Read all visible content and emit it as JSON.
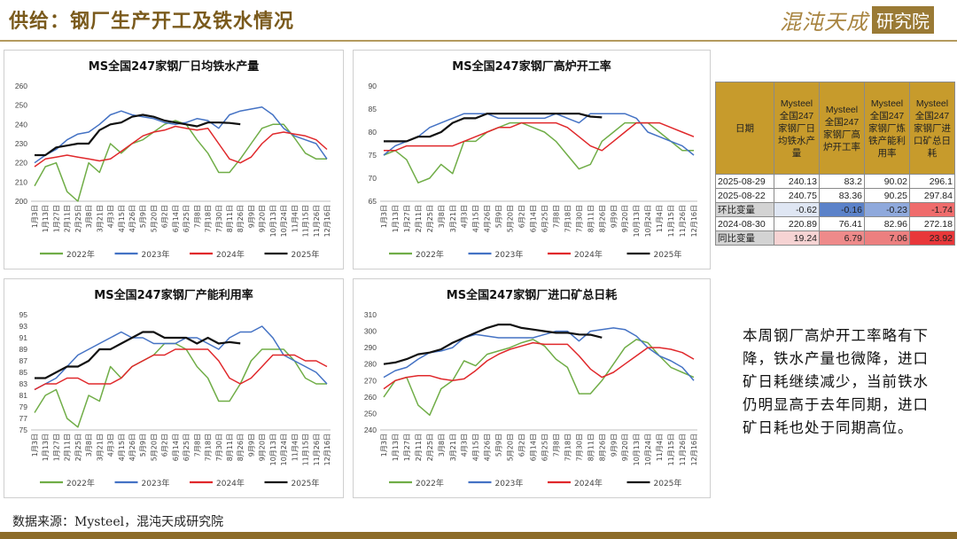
{
  "header": {
    "title": "供给：钢厂生产开工及铁水情况",
    "brand_main": "混沌天成",
    "brand_box": "研究院"
  },
  "footer": {
    "source": "数据来源：Mysteel，混沌天成研究院"
  },
  "commentary": "本周钢厂高炉开工率略有下降，铁水产量也微降，进口矿日耗继续减少，当前铁水仍明显高于去年同期，进口矿日耗也处于同期高位。",
  "colors": {
    "s2022": "#70ad47",
    "s2023": "#4472c4",
    "s2024": "#e0282b",
    "s2025": "#111111",
    "table_header": "#c79b2c",
    "accent": "#8c6b28"
  },
  "table": {
    "headers": [
      "日期",
      "Mysteel全国247家钢厂日均铁水产量",
      "Mysteel全国247家钢厂高炉开工率",
      "Mysteel全国247家钢厂炼铁产能利用率",
      "Mysteel全国247家钢厂进口矿总日耗"
    ],
    "rows": [
      {
        "label": "2025-08-29",
        "values": [
          "240.13",
          "83.2",
          "90.02",
          "296.1"
        ],
        "highlight": false,
        "colors": []
      },
      {
        "label": "2025-08-22",
        "values": [
          "240.75",
          "83.36",
          "90.25",
          "297.84"
        ],
        "highlight": false,
        "colors": []
      },
      {
        "label": "环比变量",
        "values": [
          "-0.62",
          "-0.16",
          "-0.23",
          "-1.74"
        ],
        "highlight": true,
        "colors": [
          "#dfe6f3",
          "#5b82c9",
          "#8fa9dc",
          "#ef6c6c"
        ]
      },
      {
        "label": "2024-08-30",
        "values": [
          "220.89",
          "76.41",
          "82.96",
          "272.18"
        ],
        "highlight": false,
        "colors": []
      },
      {
        "label": "同比变量",
        "values": [
          "19.24",
          "6.79",
          "7.06",
          "23.92"
        ],
        "highlight": true,
        "colors": [
          "#f6d3d3",
          "#ee8a8a",
          "#ec7f7f",
          "#e8373a"
        ]
      }
    ]
  },
  "chart_data": [
    {
      "type": "line",
      "title": "MS全国247家钢厂日均铁水产量",
      "ylim": [
        200,
        260
      ],
      "yticks": [
        200,
        210,
        220,
        230,
        240,
        250,
        260
      ],
      "x": [
        "1月3日",
        "1月13日",
        "1月27日",
        "2月11日",
        "2月25日",
        "3月8日",
        "3月21日",
        "4月3日",
        "4月15日",
        "4月26日",
        "5月9日",
        "5月20日",
        "6月2日",
        "6月14日",
        "6月25日",
        "7月8日",
        "7月18日",
        "7月30日",
        "8月11日",
        "8月26日",
        "9月9日",
        "9月20日",
        "10月13日",
        "10月24日",
        "11月4日",
        "11月15日",
        "11月26日",
        "12月16日"
      ],
      "series": [
        {
          "name": "2022年",
          "key": "s2022",
          "values": [
            208,
            218,
            220,
            205,
            200,
            220,
            215,
            230,
            225,
            230,
            232,
            236,
            240,
            242,
            240,
            232,
            225,
            215,
            215,
            222,
            230,
            238,
            240,
            240,
            233,
            225,
            222,
            222
          ]
        },
        {
          "name": "2023年",
          "key": "s2023",
          "values": [
            220,
            224,
            227,
            232,
            235,
            236,
            240,
            245,
            247,
            245,
            244,
            243,
            241,
            240,
            241,
            243,
            242,
            238,
            245,
            247,
            248,
            249,
            245,
            238,
            234,
            232,
            230,
            222
          ]
        },
        {
          "name": "2024年",
          "key": "s2024",
          "values": [
            218,
            222,
            223,
            224,
            223,
            222,
            221,
            222,
            226,
            230,
            234,
            236,
            237,
            239,
            238,
            237,
            238,
            230,
            222,
            220,
            223,
            230,
            235,
            236,
            235,
            234,
            232,
            227
          ]
        },
        {
          "name": "2025年",
          "key": "s2025",
          "values": [
            224,
            224,
            228,
            229,
            230,
            230,
            237,
            240,
            241,
            244,
            245,
            244,
            242,
            241,
            240,
            239,
            241,
            241,
            240.75,
            240.13,
            null,
            null,
            null,
            null,
            null,
            null,
            null,
            null
          ]
        }
      ]
    },
    {
      "type": "line",
      "title": "MS全国247家钢厂高炉开工率",
      "ylim": [
        65,
        90
      ],
      "yticks": [
        65,
        70,
        75,
        80,
        85,
        90
      ],
      "x": [
        "1月3日",
        "1月13日",
        "1月27日",
        "2月11日",
        "2月25日",
        "3月8日",
        "3月21日",
        "4月3日",
        "4月15日",
        "4月26日",
        "5月9日",
        "5月20日",
        "6月2日",
        "6月14日",
        "6月25日",
        "7月8日",
        "7月18日",
        "7月30日",
        "8月11日",
        "8月26日",
        "9月9日",
        "9月20日",
        "10月13日",
        "10月24日",
        "11月4日",
        "11月15日",
        "11月26日",
        "12月16日"
      ],
      "series": [
        {
          "name": "2022年",
          "key": "s2022",
          "values": [
            75,
            76,
            74,
            69,
            70,
            73,
            71,
            78,
            78,
            80,
            81,
            82,
            82,
            81,
            80,
            78,
            75,
            72,
            73,
            78,
            80,
            82,
            82,
            82,
            80,
            78,
            76,
            76
          ]
        },
        {
          "name": "2023年",
          "key": "s2023",
          "values": [
            75,
            77,
            78,
            79,
            81,
            82,
            83,
            84,
            84,
            84,
            83,
            83,
            83,
            83,
            83,
            84,
            83,
            82,
            84,
            84,
            84,
            84,
            83,
            80,
            79,
            78,
            77,
            75
          ]
        },
        {
          "name": "2024年",
          "key": "s2024",
          "values": [
            76,
            76,
            77,
            77,
            77,
            77,
            77,
            78,
            79,
            80,
            81,
            81,
            82,
            82,
            82,
            82,
            81,
            79,
            77,
            76,
            78,
            80,
            82,
            82,
            82,
            81,
            80,
            79
          ]
        },
        {
          "name": "2025年",
          "key": "s2025",
          "values": [
            78,
            78,
            78,
            79,
            79,
            80,
            82,
            83,
            83,
            84,
            84,
            84,
            84,
            84,
            84,
            84,
            84,
            84,
            83.36,
            83.2,
            null,
            null,
            null,
            null,
            null,
            null,
            null,
            null
          ]
        }
      ]
    },
    {
      "type": "line",
      "title": "MS全国247家钢厂产能利用率",
      "ylim": [
        75,
        95
      ],
      "yticks": [
        75,
        77,
        79,
        81,
        83,
        85,
        87,
        89,
        91,
        93,
        95
      ],
      "x": [
        "1月3日",
        "1月13日",
        "1月27日",
        "2月11日",
        "2月25日",
        "3月8日",
        "3月21日",
        "4月3日",
        "4月15日",
        "4月26日",
        "5月9日",
        "5月20日",
        "6月2日",
        "6月14日",
        "6月25日",
        "7月8日",
        "7月18日",
        "7月30日",
        "8月11日",
        "8月26日",
        "9月9日",
        "9月20日",
        "10月13日",
        "10月24日",
        "11月4日",
        "11月15日",
        "11月26日",
        "12月16日"
      ],
      "series": [
        {
          "name": "2022年",
          "key": "s2022",
          "values": [
            78,
            81,
            82,
            77,
            75.5,
            81,
            80,
            86,
            84,
            86,
            87,
            88,
            90,
            90,
            89,
            86,
            84,
            80,
            80,
            83,
            87,
            89,
            89,
            89,
            87,
            84,
            83,
            83
          ]
        },
        {
          "name": "2023年",
          "key": "s2023",
          "values": [
            82,
            83,
            84,
            86,
            88,
            89,
            90,
            91,
            92,
            91,
            91,
            90,
            90,
            90,
            91,
            91,
            90,
            89,
            91,
            92,
            92,
            93,
            91,
            88,
            87,
            86,
            85,
            83
          ]
        },
        {
          "name": "2024年",
          "key": "s2024",
          "values": [
            82,
            83,
            83,
            84,
            84,
            83,
            83,
            83,
            84,
            86,
            87,
            88,
            88,
            89,
            89,
            89,
            89,
            87,
            84,
            83,
            84,
            86,
            88,
            88,
            88,
            87,
            87,
            86
          ]
        },
        {
          "name": "2025年",
          "key": "s2025",
          "values": [
            84,
            84,
            85,
            86,
            86,
            87,
            89,
            89,
            90,
            91,
            92,
            92,
            91,
            91,
            91,
            90,
            91,
            90,
            90.25,
            90.02,
            null,
            null,
            null,
            null,
            null,
            null,
            null,
            null
          ]
        }
      ]
    },
    {
      "type": "line",
      "title": "MS全国247家钢厂进口矿总日耗",
      "ylim": [
        240,
        310
      ],
      "yticks": [
        240,
        250,
        260,
        270,
        280,
        290,
        300,
        310
      ],
      "x": [
        "1月3日",
        "1月13日",
        "1月27日",
        "2月11日",
        "2月25日",
        "3月8日",
        "3月21日",
        "4月3日",
        "4月15日",
        "4月26日",
        "5月9日",
        "5月20日",
        "6月2日",
        "6月14日",
        "6月25日",
        "7月8日",
        "7月18日",
        "7月30日",
        "8月11日",
        "8月26日",
        "9月9日",
        "9月20日",
        "10月13日",
        "10月24日",
        "11月4日",
        "11月15日",
        "11月26日",
        "12月16日"
      ],
      "series": [
        {
          "name": "2022年",
          "key": "s2022",
          "values": [
            260,
            270,
            272,
            255,
            249,
            265,
            270,
            282,
            279,
            286,
            288,
            290,
            293,
            295,
            291,
            283,
            278,
            262,
            262,
            270,
            280,
            290,
            295,
            293,
            285,
            278,
            275,
            272
          ]
        },
        {
          "name": "2023年",
          "key": "s2023",
          "values": [
            272,
            276,
            278,
            283,
            287,
            288,
            290,
            296,
            298,
            297,
            296,
            296,
            296,
            296,
            298,
            300,
            300,
            294,
            300,
            301,
            302,
            301,
            297,
            290,
            285,
            282,
            278,
            270
          ]
        },
        {
          "name": "2024年",
          "key": "s2024",
          "values": [
            265,
            270,
            272,
            273,
            273,
            271,
            270,
            271,
            276,
            282,
            286,
            289,
            291,
            293,
            292,
            292,
            292,
            285,
            277,
            272,
            275,
            280,
            285,
            290,
            290,
            289,
            287,
            283
          ]
        },
        {
          "name": "2025年",
          "key": "s2025",
          "values": [
            280,
            281,
            283,
            286,
            287,
            289,
            293,
            296,
            299,
            302,
            304,
            304,
            302,
            301,
            300,
            299,
            299,
            298,
            297.84,
            296.1,
            null,
            null,
            null,
            null,
            null,
            null,
            null,
            null
          ]
        }
      ]
    }
  ]
}
